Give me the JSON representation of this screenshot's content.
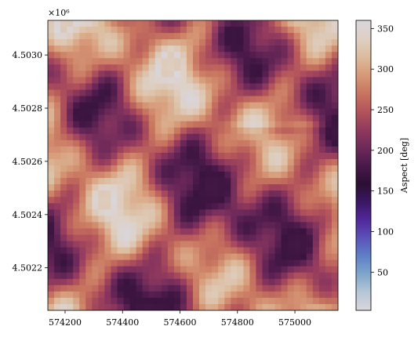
{
  "chart_data": {
    "type": "heatmap",
    "title": "",
    "xlabel": "",
    "ylabel": "",
    "y_offset_label": "×10⁶",
    "x_ticks": [
      {
        "value": 574200,
        "label": "574200"
      },
      {
        "value": 574400,
        "label": "574400"
      },
      {
        "value": 574600,
        "label": "574600"
      },
      {
        "value": 574800,
        "label": "574800"
      },
      {
        "value": 575000,
        "label": "575000"
      }
    ],
    "y_ticks": [
      {
        "value": 4.5022,
        "label": "4.5022"
      },
      {
        "value": 4.5024,
        "label": "4.5024"
      },
      {
        "value": 4.5026,
        "label": "4.5026"
      },
      {
        "value": 4.5028,
        "label": "4.5028"
      },
      {
        "value": 4.503,
        "label": "4.5030"
      }
    ],
    "xlim": [
      574140,
      575150
    ],
    "ylim": [
      4.50204,
      4.50313
    ],
    "colorbar": {
      "label": "Aspect [deg]",
      "range": [
        3,
        360
      ],
      "ticks": [
        {
          "value": 50,
          "label": "50"
        },
        {
          "value": 100,
          "label": "100"
        },
        {
          "value": 150,
          "label": "150"
        },
        {
          "value": 200,
          "label": "200"
        },
        {
          "value": 250,
          "label": "250"
        },
        {
          "value": 300,
          "label": "300"
        },
        {
          "value": 350,
          "label": "350"
        }
      ],
      "colormap": [
        "#d9d6dd",
        "#b6c6d6",
        "#7ea6cc",
        "#5f7fc7",
        "#5b52b8",
        "#50289a",
        "#3a1760",
        "#2b0f33",
        "#4a1a4a",
        "#6e2a5a",
        "#933a5e",
        "#b4545b",
        "#c87660",
        "#d79a78",
        "#dcbc9e",
        "#ded0c4",
        "#d9d6dd"
      ]
    },
    "grid": false,
    "legend": "none"
  }
}
